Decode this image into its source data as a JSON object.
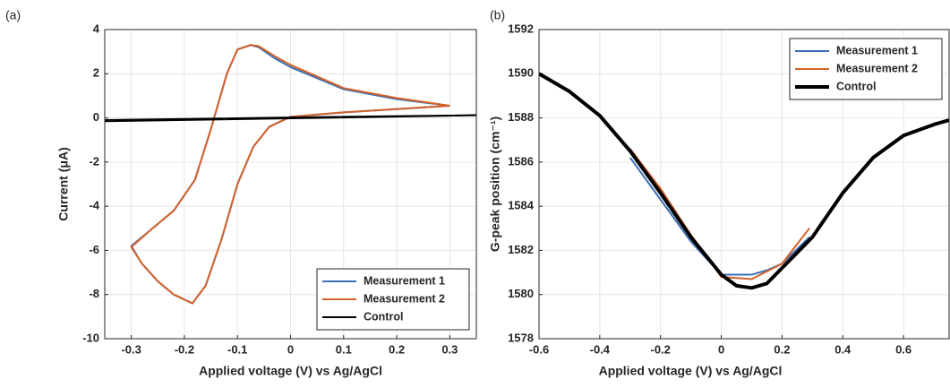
{
  "chart_data": [
    {
      "type": "line",
      "panel_label": "(a)",
      "xlabel": "Applied voltage (V) vs Ag/AgCl",
      "ylabel": "Current (μA)",
      "xlim": [
        -0.35,
        0.35
      ],
      "xticks": [
        -0.3,
        -0.2,
        -0.1,
        0,
        0.1,
        0.2,
        0.3
      ],
      "ylim": [
        -10,
        4
      ],
      "yticks": [
        -10,
        -8,
        -6,
        -4,
        -2,
        0,
        2,
        4
      ],
      "grid": true,
      "legend": "lower-right",
      "series": [
        {
          "name": "Measurement 1",
          "color": "#3b6fb6",
          "x": [
            0.3,
            0.2,
            0.1,
            0,
            -0.03,
            -0.06,
            -0.075,
            -0.1,
            -0.12,
            -0.15,
            -0.18,
            -0.22,
            -0.26,
            -0.3,
            -0.28,
            -0.25,
            -0.22,
            -0.185,
            -0.16,
            -0.13,
            -0.1,
            -0.07,
            -0.04,
            0,
            0.1,
            0.2,
            0.3
          ],
          "values": [
            0.55,
            0.85,
            1.3,
            2.3,
            2.7,
            3.2,
            3.3,
            3.1,
            2.0,
            -0.5,
            -2.8,
            -4.2,
            -5.0,
            -5.8,
            -6.6,
            -7.4,
            -8.0,
            -8.4,
            -7.6,
            -5.5,
            -3.0,
            -1.3,
            -0.4,
            0.05,
            0.25,
            0.4,
            0.55
          ]
        },
        {
          "name": "Measurement 2",
          "color": "#d4622a",
          "x": [
            0.3,
            0.2,
            0.1,
            0,
            -0.03,
            -0.06,
            -0.075,
            -0.1,
            -0.12,
            -0.15,
            -0.18,
            -0.22,
            -0.26,
            -0.3,
            -0.28,
            -0.25,
            -0.22,
            -0.185,
            -0.16,
            -0.13,
            -0.1,
            -0.07,
            -0.04,
            0,
            0.1,
            0.2,
            0.3
          ],
          "values": [
            0.55,
            0.9,
            1.35,
            2.4,
            2.8,
            3.25,
            3.3,
            3.1,
            2.0,
            -0.5,
            -2.8,
            -4.2,
            -5.0,
            -5.85,
            -6.6,
            -7.4,
            -8.0,
            -8.4,
            -7.6,
            -5.5,
            -3.0,
            -1.3,
            -0.4,
            0.05,
            0.25,
            0.4,
            0.55
          ]
        },
        {
          "name": "Control",
          "color": "#000000",
          "x": [
            -0.35,
            0,
            0.35,
            0,
            -0.35
          ],
          "values": [
            -0.15,
            -0.02,
            0.12,
            0.02,
            -0.1
          ]
        }
      ]
    },
    {
      "type": "line",
      "panel_label": "(b)",
      "xlabel": "Applied voltage (V) vs Ag/AgCl",
      "ylabel": "G-peak position (cm⁻¹)",
      "xlim": [
        -0.6,
        0.75
      ],
      "xticks": [
        -0.6,
        -0.4,
        -0.2,
        0,
        0.2,
        0.4,
        0.6
      ],
      "ylim": [
        1578,
        1592
      ],
      "yticks": [
        1578,
        1580,
        1582,
        1584,
        1586,
        1588,
        1590,
        1592
      ],
      "grid": true,
      "legend": "upper-right",
      "series": [
        {
          "name": "Measurement 1",
          "color": "#3b6fb6",
          "x": [
            -0.3,
            -0.2,
            -0.1,
            0,
            0.1,
            0.15,
            0.2,
            0.29
          ],
          "values": [
            1586.2,
            1584.3,
            1582.4,
            1580.9,
            1580.9,
            1581.1,
            1581.4,
            1582.6
          ]
        },
        {
          "name": "Measurement 2",
          "color": "#d4622a",
          "x": [
            -0.3,
            -0.2,
            -0.1,
            0,
            0.1,
            0.2,
            0.29
          ],
          "values": [
            1586.6,
            1584.8,
            1582.7,
            1580.8,
            1580.7,
            1581.4,
            1583.0
          ]
        },
        {
          "name": "Control",
          "color": "#000000",
          "x": [
            -0.6,
            -0.5,
            -0.4,
            -0.3,
            -0.2,
            -0.1,
            0,
            0.05,
            0.1,
            0.15,
            0.2,
            0.3,
            0.4,
            0.5,
            0.6,
            0.7,
            0.75
          ],
          "values": [
            1590,
            1589.2,
            1588.1,
            1586.5,
            1584.6,
            1582.6,
            1580.9,
            1580.4,
            1580.3,
            1580.5,
            1581.2,
            1582.6,
            1584.6,
            1586.2,
            1587.2,
            1587.7,
            1587.9
          ]
        }
      ]
    }
  ]
}
